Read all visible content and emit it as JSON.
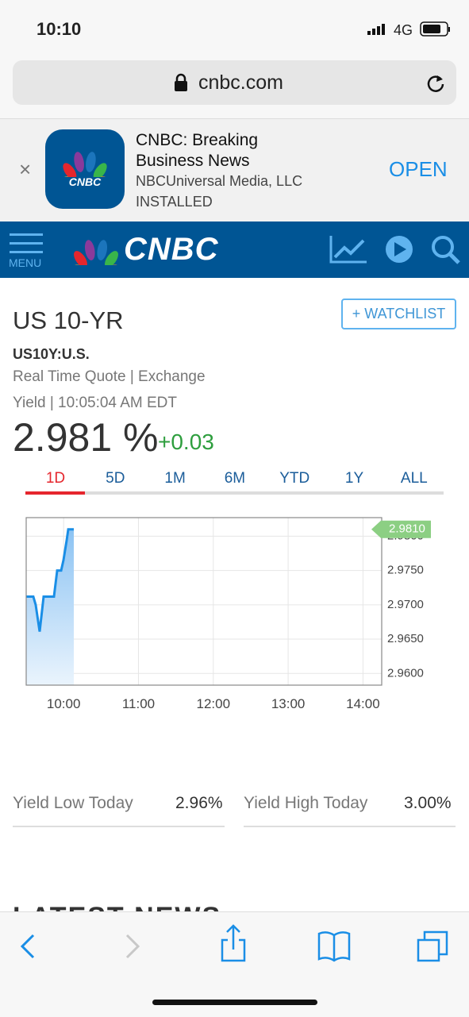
{
  "status_bar": {
    "time": "10:10",
    "network": "4G"
  },
  "url_bar": {
    "url": "cnbc.com"
  },
  "app_banner": {
    "logo": "CNBC",
    "title": "CNBC: Breaking Business News",
    "publisher": "NBCUniversal Media, LLC",
    "status": "INSTALLED",
    "action": "OPEN"
  },
  "nav": {
    "menu": "MENU",
    "brand": "CNBC"
  },
  "quote": {
    "name": "US 10-YR",
    "watchlist": "+ WATCHLIST",
    "symbol": "US10Y:U.S.",
    "source": "Real Time Quote | Exchange",
    "timestamp": "Yield | 10:05:04 AM EDT",
    "price": "2.981 %",
    "change": "+0.03"
  },
  "tabs": [
    "1D",
    "5D",
    "1M",
    "6M",
    "YTD",
    "1Y",
    "ALL"
  ],
  "chart_data": {
    "type": "area",
    "color": "#1a8ee6",
    "x": [
      9.5,
      9.595,
      9.627,
      9.68,
      9.733,
      9.871,
      9.914,
      9.967,
      9.998,
      10.041,
      10.062,
      10.136
    ],
    "values": [
      2.9712,
      2.9712,
      2.97,
      2.9661,
      2.9712,
      2.9712,
      2.975,
      2.975,
      2.9765,
      2.9794,
      2.981,
      2.981
    ],
    "xlim": [
      9.5,
      14.25
    ],
    "ylim": [
      2.9583,
      2.9827
    ],
    "xticks": [
      {
        "value": 10,
        "label": "10:00"
      },
      {
        "value": 11,
        "label": "11:00"
      },
      {
        "value": 12,
        "label": "12:00"
      },
      {
        "value": 13,
        "label": "13:00"
      },
      {
        "value": 14,
        "label": "14:00"
      }
    ],
    "yticks": [
      {
        "value": 2.96,
        "label": "2.9600"
      },
      {
        "value": 2.965,
        "label": "2.9650"
      },
      {
        "value": 2.97,
        "label": "2.9700"
      },
      {
        "value": 2.975,
        "label": "2.9750"
      },
      {
        "value": 2.98,
        "label": "2.9800"
      }
    ],
    "grid": true,
    "marker": {
      "value": 2.981,
      "label": "2.9810"
    }
  },
  "stats": [
    {
      "label": "Yield Low Today",
      "value": "2.96%"
    },
    {
      "label": "Yield High Today",
      "value": "3.00%"
    }
  ],
  "news_heading": "LATEST NEWS"
}
